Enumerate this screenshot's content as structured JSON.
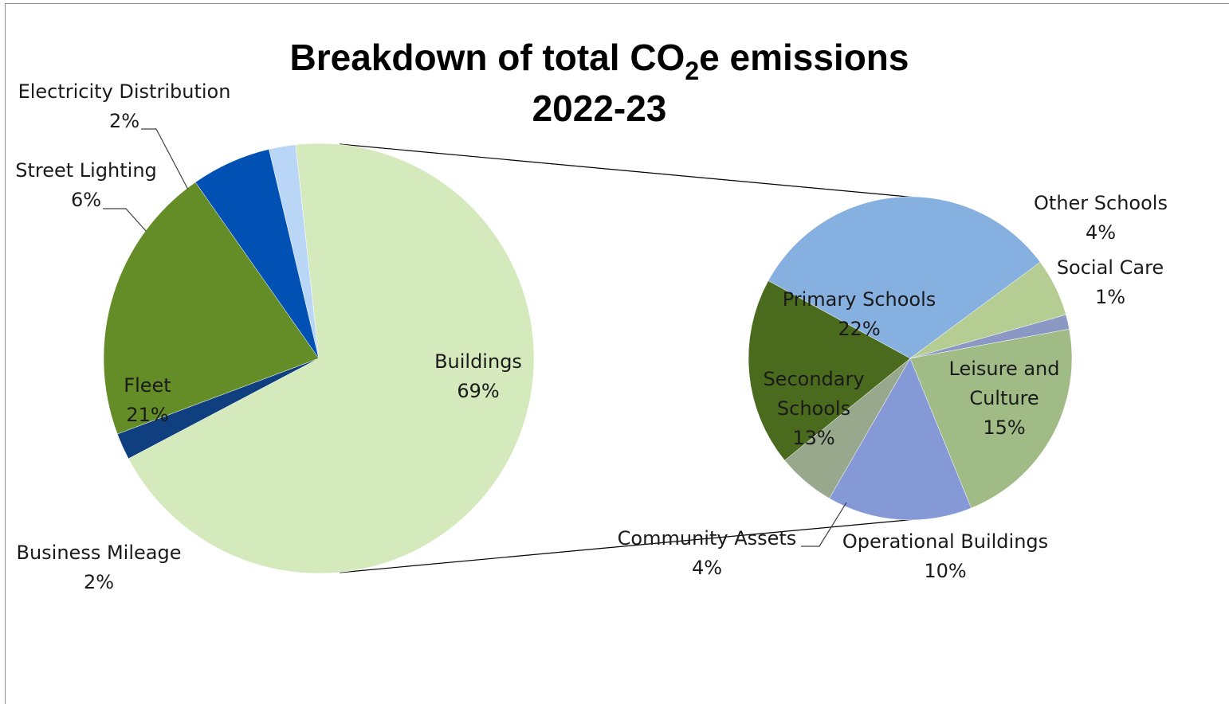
{
  "chart_data": {
    "type": "pie",
    "subtype": "pie-of-pie",
    "title": "Breakdown of total CO2e emissions 2022-23",
    "title_lines": [
      "Breakdown of total CO",
      "2",
      "e emissions",
      "2022-23"
    ],
    "main_pie": {
      "slices": [
        {
          "label": "Buildings",
          "value": 69,
          "value_label": "69%",
          "color": "#d5eabc"
        },
        {
          "label": "Business Mileage",
          "value": 2,
          "value_label": "2%",
          "color": "#0f3f7e"
        },
        {
          "label": "Fleet",
          "value": 21,
          "value_label": "21%",
          "color": "#648c27"
        },
        {
          "label": "Street Lighting",
          "value": 6,
          "value_label": "6%",
          "color": "#0051b3"
        },
        {
          "label": "Electricity Distribution",
          "value": 2,
          "value_label": "2%",
          "color": "#b9d6f7"
        }
      ]
    },
    "secondary_pie": {
      "parent": "Buildings",
      "slices": [
        {
          "label": "Primary Schools",
          "value": 22,
          "value_label": "22%",
          "color": "#86b0df"
        },
        {
          "label": "Other Schools",
          "value": 4,
          "value_label": "4%",
          "color": "#b5cc93"
        },
        {
          "label": "Social Care",
          "value": 1,
          "value_label": "1%",
          "color": "#8c98c4"
        },
        {
          "label": "Leisure and Culture",
          "value": 15,
          "value_label": "15%",
          "color": "#a1bb86"
        },
        {
          "label": "Operational Buildings",
          "value": 10,
          "value_label": "10%",
          "color": "#8599d6"
        },
        {
          "label": "Community Assets",
          "value": 4,
          "value_label": "4%",
          "color": "#98a88c"
        },
        {
          "label": "Secondary Schools",
          "value": 13,
          "value_label": "13%",
          "color": "#4a6b1d"
        }
      ]
    }
  }
}
